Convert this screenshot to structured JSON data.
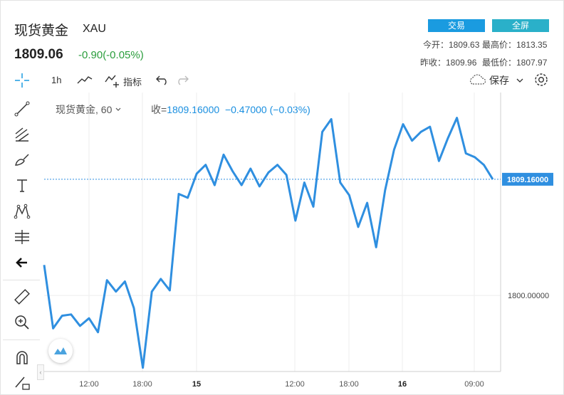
{
  "header": {
    "title": "现货黄金",
    "symbol": "XAU",
    "price": "1809.06",
    "change": "-0.90(-0.05%)",
    "trade_button": "交易",
    "fullscreen_button": "全屏",
    "open": "今开：1809.63",
    "high": "最高价：1813.35",
    "prev_close": "昨收：1809.96",
    "low": "最低价：1807.97"
  },
  "toolbar": {
    "interval": "1h",
    "indicators": "指标",
    "save": "保存"
  },
  "legend": {
    "name": "现货黄金, 60",
    "close_label": "收=",
    "close_value": "1809.16000",
    "close_change": "−0.47000 (−0.03%)"
  },
  "colors": {
    "line": "#2f8fe0",
    "up": "#2a9d3c",
    "grid": "#eeeeee"
  },
  "chart_data": {
    "type": "line",
    "title": "",
    "xlabel": "",
    "ylabel": "",
    "x_ticks": [
      "12:00",
      "18:00",
      "15",
      "12:00",
      "18:00",
      "16",
      "09:00"
    ],
    "y_ticks": [
      "1800.00000"
    ],
    "current_price_label": "1809.16000",
    "ylim": [
      1794.0,
      1816.0
    ],
    "grid": true,
    "series": [
      {
        "name": "",
        "values": [
          1802.4,
          1797.4,
          1798.4,
          1798.5,
          1797.6,
          1798.2,
          1797.1,
          1801.2,
          1800.3,
          1801.1,
          1799.0,
          1794.3,
          1800.3,
          1801.3,
          1800.4,
          1808.0,
          1807.7,
          1809.6,
          1810.3,
          1808.7,
          1811.1,
          1809.8,
          1808.7,
          1810.0,
          1808.6,
          1809.7,
          1810.3,
          1809.5,
          1805.9,
          1808.9,
          1807.0,
          1812.9,
          1813.9,
          1808.9,
          1807.9,
          1805.4,
          1807.3,
          1803.8,
          1808.3,
          1811.5,
          1813.5,
          1812.2,
          1812.9,
          1813.3,
          1810.6,
          1812.4,
          1814.0,
          1811.2,
          1810.9,
          1810.3,
          1809.16
        ]
      }
    ]
  }
}
